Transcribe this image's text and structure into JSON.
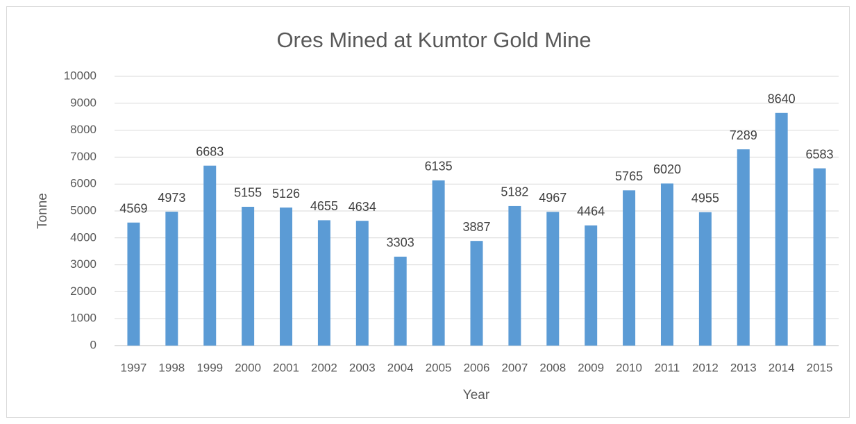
{
  "chart_data": {
    "type": "bar",
    "title": "Ores Mined at Kumtor Gold Mine",
    "x_label": "Year",
    "y_label": "Tonne",
    "categories": [
      "1997",
      "1998",
      "1999",
      "2000",
      "2001",
      "2002",
      "2003",
      "2004",
      "2005",
      "2006",
      "2007",
      "2008",
      "2009",
      "2010",
      "2011",
      "2012",
      "2013",
      "2014",
      "2015"
    ],
    "values": [
      4569,
      4973,
      6683,
      5155,
      5126,
      4655,
      4634,
      3303,
      6135,
      3887,
      5182,
      4967,
      4464,
      5765,
      6020,
      4955,
      7289,
      8640,
      6583
    ],
    "color": "#5b9bd5",
    "ylim": [
      0,
      10000
    ],
    "yticks": [
      0,
      1000,
      2000,
      3000,
      4000,
      5000,
      6000,
      7000,
      8000,
      9000,
      10000
    ],
    "grid": true
  }
}
